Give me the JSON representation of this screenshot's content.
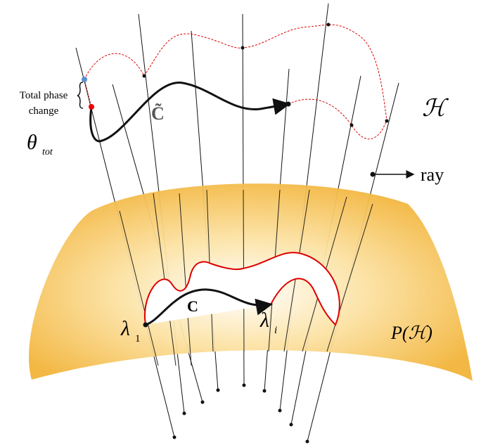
{
  "annotation": {
    "line1": "Total phase",
    "line2": "change"
  },
  "theta": {
    "symbol": "θ",
    "subscript": "tot"
  },
  "curve_label": "C̃",
  "hilbert": "ℋ",
  "ray": "ray",
  "loop_label": "C",
  "lambda1": {
    "symbol": "λ",
    "subscript": "1"
  },
  "lambdai": {
    "symbol": "λ",
    "subscript": "i"
  },
  "projective": "P(ℋ)"
}
